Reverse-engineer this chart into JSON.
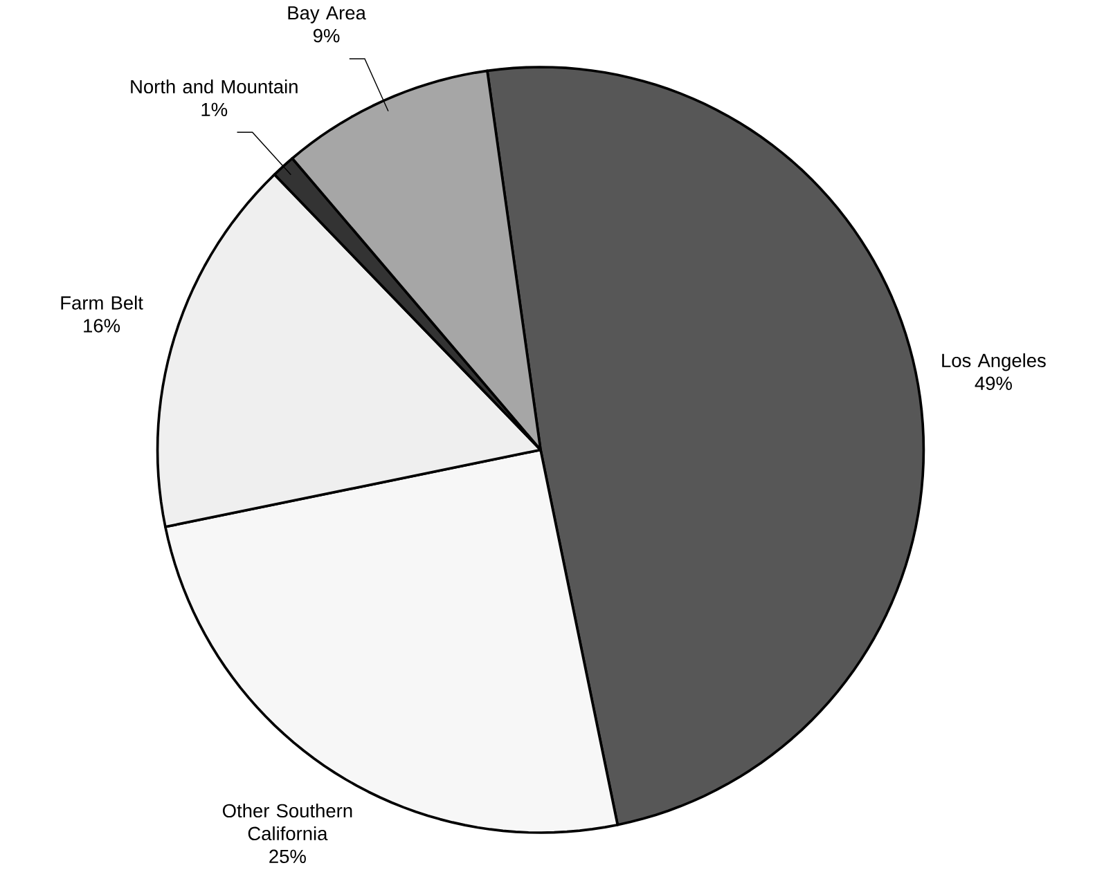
{
  "chart_data": {
    "type": "pie",
    "categories": [
      "Los Angeles",
      "Other Southern California",
      "Farm Belt",
      "North and Mountain",
      "Bay Area"
    ],
    "values": [
      49,
      25,
      16,
      1,
      9
    ],
    "value_labels": [
      "49%",
      "25%",
      "16%",
      "1%",
      "9%"
    ],
    "colors": [
      "#575757",
      "#f7f7f7",
      "#efefef",
      "#333333",
      "#a6a6a6"
    ]
  }
}
